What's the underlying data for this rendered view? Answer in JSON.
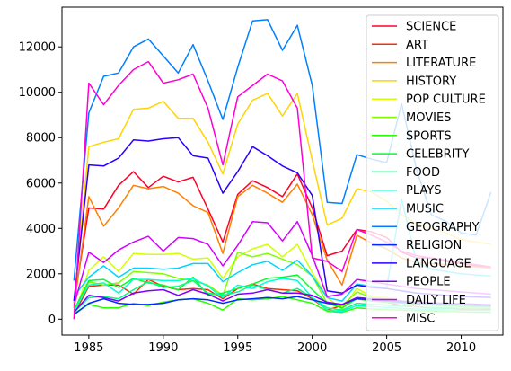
{
  "chart_data": {
    "type": "line",
    "title": "",
    "xlabel": "",
    "ylabel": "",
    "xlim": [
      1983.2,
      2012.8
    ],
    "ylim": [
      -700,
      13750
    ],
    "x_ticks": [
      1985,
      1990,
      1995,
      2000,
      2005,
      2010
    ],
    "y_ticks": [
      0,
      2000,
      4000,
      6000,
      8000,
      10000,
      12000
    ],
    "grid": false,
    "legend_position": "top-right",
    "x": [
      1984,
      1985,
      1986,
      1987,
      1988,
      1989,
      1990,
      1991,
      1992,
      1993,
      1994,
      1995,
      1996,
      1997,
      1998,
      1999,
      2000,
      2001,
      2002,
      2003,
      2004,
      2005,
      2006,
      2007,
      2008,
      2009,
      2010,
      2011,
      2012
    ],
    "series": [
      {
        "name": "SCIENCE",
        "color": "#ff0029",
        "values": [
          700,
          4900,
          4850,
          5900,
          6500,
          5800,
          6300,
          6050,
          6250,
          4850,
          3400,
          5500,
          6100,
          5800,
          5400,
          6400,
          4900,
          2800,
          3000,
          3950,
          3850,
          3600,
          2950,
          2700,
          2700,
          2550,
          2450,
          2350,
          2250
        ]
      },
      {
        "name": "ART",
        "color": "#ff2a00",
        "values": [
          200,
          1450,
          1500,
          1500,
          1100,
          1750,
          1450,
          1300,
          1350,
          1300,
          900,
          1350,
          1550,
          1350,
          1300,
          1250,
          900,
          400,
          600,
          900,
          800,
          750,
          600,
          550,
          500,
          480,
          460,
          450,
          430
        ]
      },
      {
        "name": "LITERATURE",
        "color": "#ff7f00",
        "values": [
          500,
          5400,
          4100,
          4900,
          5900,
          5750,
          5850,
          5550,
          5000,
          4700,
          2900,
          5400,
          5900,
          5550,
          5150,
          5950,
          4600,
          2600,
          1500,
          3700,
          3350,
          3100,
          2700,
          2500,
          2450,
          2400,
          2350,
          2300,
          2250
        ]
      },
      {
        "name": "HISTORY",
        "color": "#ffd400",
        "values": [
          700,
          7600,
          7800,
          7950,
          9250,
          9300,
          9600,
          8850,
          8850,
          7800,
          6400,
          8600,
          9650,
          9950,
          8950,
          9950,
          7000,
          4150,
          4450,
          5750,
          5600,
          5200,
          4600,
          4200,
          4000,
          3800,
          3500,
          3400,
          3300
        ]
      },
      {
        "name": "POP CULTURE",
        "color": "#d4ff00",
        "values": [
          150,
          2150,
          2750,
          2100,
          2900,
          2850,
          2850,
          2900,
          2650,
          2700,
          1800,
          2750,
          3100,
          3300,
          2750,
          3300,
          2050,
          950,
          450,
          1350,
          1000,
          950,
          800,
          700,
          650,
          600,
          560,
          540,
          520
        ]
      },
      {
        "name": "MOVIES",
        "color": "#7fff00",
        "values": [
          300,
          1650,
          1500,
          1600,
          2100,
          2050,
          2000,
          1800,
          1700,
          1500,
          1050,
          2950,
          2750,
          2900,
          2650,
          2400,
          1900,
          700,
          600,
          1200,
          950,
          900,
          800,
          700,
          650,
          600,
          560,
          540,
          520
        ]
      },
      {
        "name": "SPORTS",
        "color": "#2aff00",
        "values": [
          250,
          650,
          500,
          500,
          700,
          600,
          750,
          850,
          900,
          700,
          400,
          900,
          850,
          900,
          1000,
          850,
          700,
          350,
          300,
          500,
          450,
          420,
          400,
          380,
          360,
          340,
          320,
          310,
          300
        ]
      },
      {
        "name": "CELEBRITY",
        "color": "#00ff29",
        "values": [
          400,
          1700,
          1750,
          1400,
          1800,
          1600,
          1500,
          1300,
          1850,
          1050,
          1150,
          1350,
          1550,
          1800,
          1850,
          1950,
          1300,
          700,
          500,
          900,
          800,
          760,
          700,
          650,
          620,
          600,
          580,
          560,
          540
        ]
      },
      {
        "name": "FOOD",
        "color": "#00ff7f",
        "values": [
          300,
          950,
          1000,
          900,
          1300,
          1650,
          1400,
          1450,
          1700,
          1150,
          1050,
          1200,
          1500,
          1300,
          1150,
          1350,
          950,
          500,
          400,
          700,
          650,
          620,
          580,
          540,
          520,
          500,
          480,
          470,
          460
        ]
      },
      {
        "name": "PLAYS",
        "color": "#00ffd4",
        "values": [
          350,
          1500,
          1600,
          1150,
          1750,
          1750,
          1700,
          1700,
          1800,
          1450,
          950,
          1500,
          1350,
          1650,
          1800,
          1700,
          950,
          400,
          350,
          600,
          550,
          520,
          480,
          450,
          430,
          410,
          400,
          390,
          380
        ]
      },
      {
        "name": "MUSIC",
        "color": "#00d4ff",
        "values": [
          1000,
          1850,
          2350,
          1850,
          2250,
          2250,
          2200,
          2250,
          2450,
          2450,
          1650,
          2050,
          2400,
          2550,
          2150,
          2600,
          1900,
          950,
          800,
          1550,
          1450,
          1400,
          5300,
          2500,
          2200,
          2100,
          2000,
          1950,
          1900
        ]
      },
      {
        "name": "GEOGRAPHY",
        "color": "#007fff",
        "values": [
          1700,
          9100,
          10700,
          10850,
          12000,
          12350,
          11600,
          10850,
          12100,
          10500,
          8800,
          11100,
          13150,
          13200,
          11850,
          12950,
          10300,
          5150,
          5100,
          7250,
          7050,
          6900,
          9500,
          6600,
          4600,
          4300,
          3800,
          3700,
          5600
        ]
      },
      {
        "name": "RELIGION",
        "color": "#002aff",
        "values": [
          200,
          700,
          900,
          700,
          650,
          650,
          700,
          850,
          900,
          850,
          700,
          850,
          900,
          950,
          900,
          1000,
          850,
          700,
          650,
          900,
          850,
          800,
          750,
          700,
          680,
          660,
          640,
          620,
          600
        ]
      },
      {
        "name": "LANGUAGE",
        "color": "#2900ff",
        "values": [
          800,
          6800,
          6750,
          7100,
          7900,
          7850,
          7950,
          8000,
          7200,
          7100,
          5550,
          6500,
          7600,
          7200,
          6750,
          6450,
          5450,
          1250,
          1150,
          1500,
          1400,
          1350,
          1250,
          1150,
          1100,
          1050,
          1000,
          980,
          960
        ]
      },
      {
        "name": "PEOPLE",
        "color": "#7f00ff",
        "values": [
          300,
          1050,
          950,
          800,
          1150,
          1250,
          1300,
          1050,
          1300,
          1100,
          800,
          1100,
          1150,
          1300,
          1150,
          1150,
          1050,
          750,
          650,
          950,
          900,
          850,
          800,
          750,
          720,
          700,
          680,
          660,
          640
        ]
      },
      {
        "name": "DAILY LIFE",
        "color": "#d400ff",
        "values": [
          600,
          2950,
          2500,
          3050,
          3400,
          3650,
          3000,
          3600,
          3550,
          3300,
          2350,
          3250,
          4300,
          4250,
          3450,
          4300,
          2800,
          1000,
          1100,
          1750,
          1650,
          1550,
          1450,
          1350,
          1300,
          1250,
          1200,
          1150,
          1100
        ]
      },
      {
        "name": "MISC",
        "color": "#ff00d4",
        "values": [
          0,
          10400,
          9450,
          10300,
          11000,
          11350,
          10400,
          10550,
          10800,
          9300,
          6800,
          9800,
          10300,
          10800,
          10500,
          9300,
          2700,
          2550,
          2100,
          3950,
          3700,
          3400,
          3000,
          2800,
          2700,
          2600,
          2500,
          2400,
          2300
        ]
      }
    ]
  }
}
